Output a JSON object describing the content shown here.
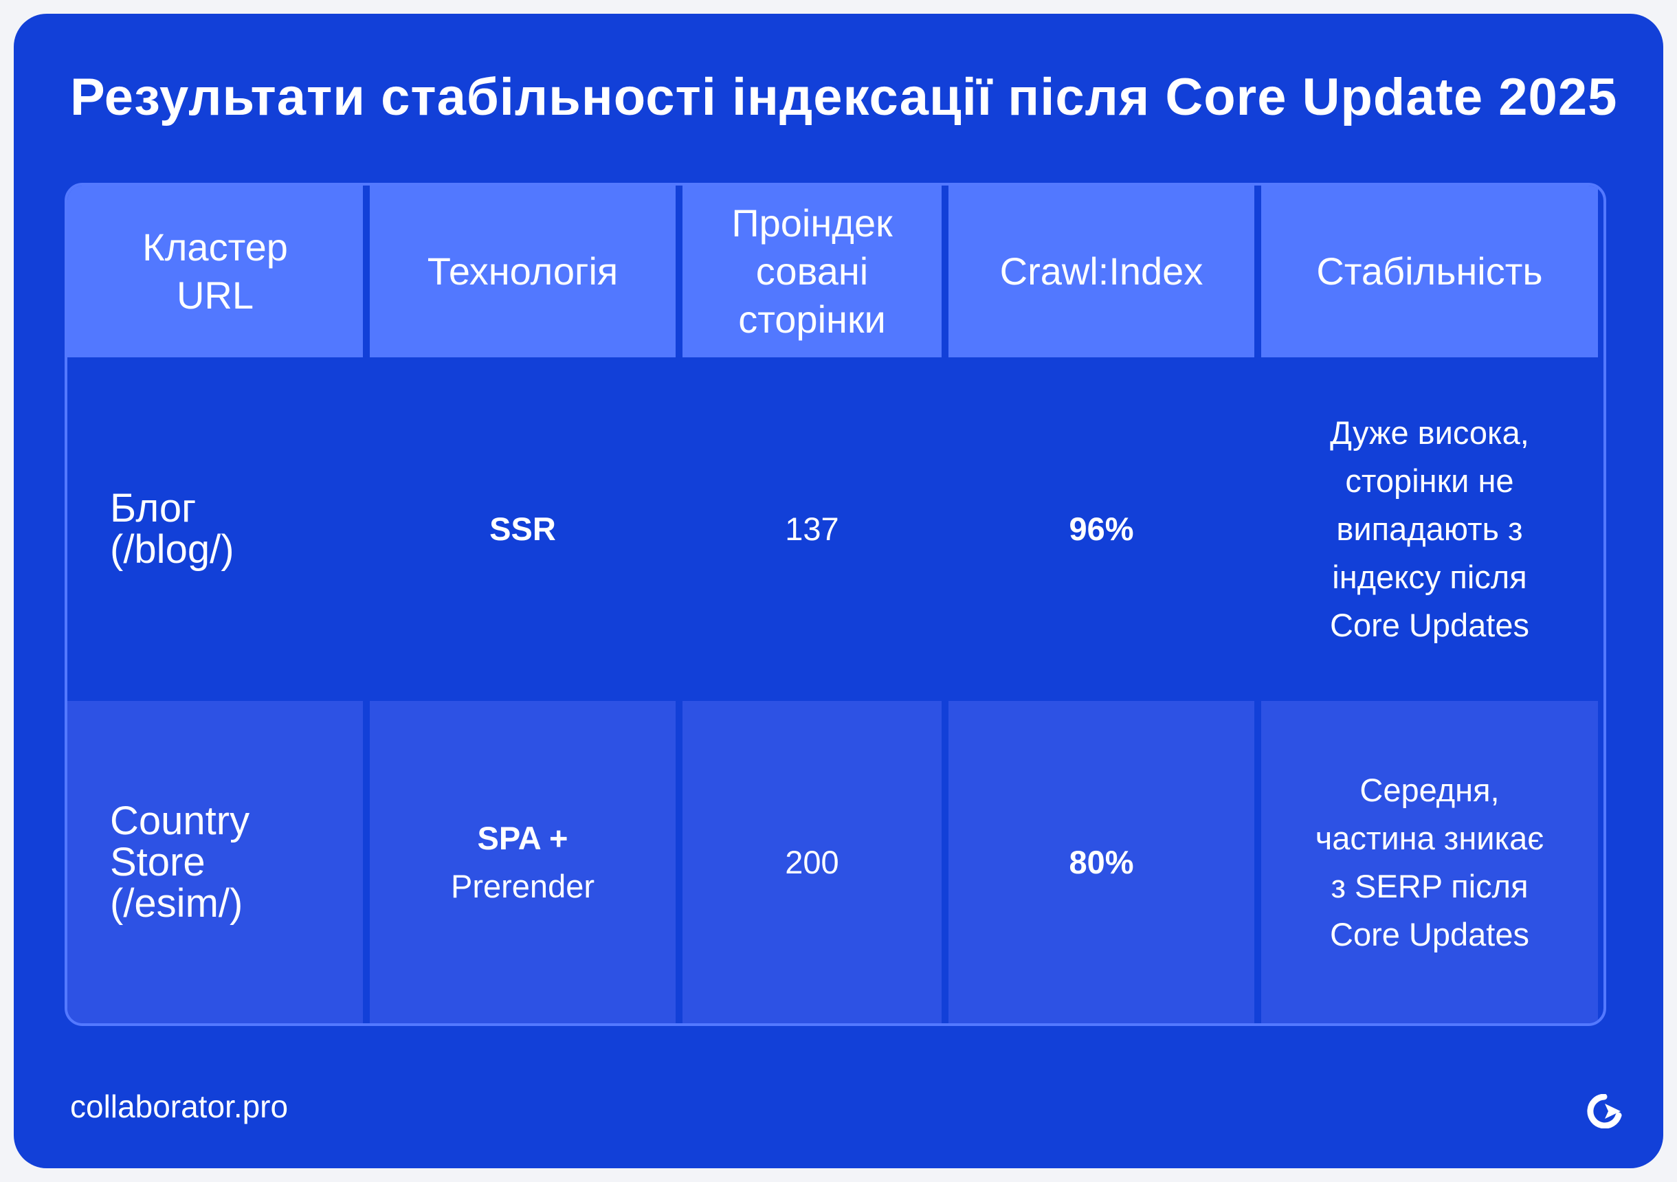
{
  "title": "Результати стабільності індексації після Core Update 2025",
  "table": {
    "headers": [
      "Кластер URL",
      "Технологія",
      "Проіндек сованi сторінки",
      "Crawl:Index",
      "Стабільність"
    ],
    "rows": [
      {
        "cluster": "Блог (/blog/)",
        "technology_bold": "SSR",
        "technology_rest": "",
        "indexed_pages": "137",
        "crawl_index": "96%",
        "stability": "Дуже висока, сторінки не випадають з індексу після Core Updates"
      },
      {
        "cluster": "Country Store (/esim/)",
        "technology_bold": "SPA +",
        "technology_rest": "Prerender",
        "indexed_pages": "200",
        "crawl_index": "80%",
        "stability": "Середня, частина зникає з SERP після Core Updates"
      }
    ]
  },
  "footer": {
    "site": "collaborator.pro",
    "logo_icon": "collaborator-logo-icon"
  },
  "colors": {
    "card_bg": "#1240d8",
    "header_bg": "#5278ff",
    "row_alt_bg": "#2d52e4",
    "text": "#ffffff"
  }
}
